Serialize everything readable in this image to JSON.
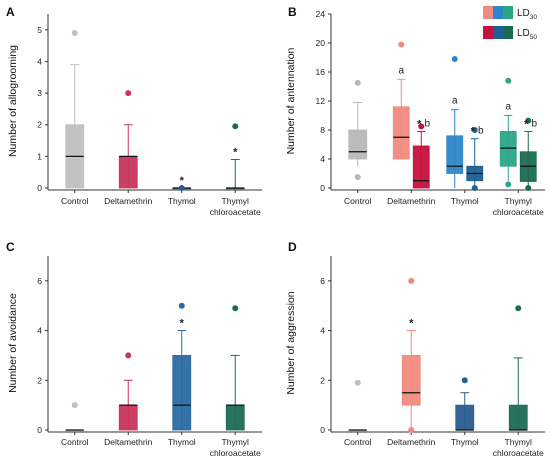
{
  "chart_data": [
    {
      "type": "box",
      "panel_label": "A",
      "ylabel": "Number of allogrooming",
      "ylim": [
        0,
        5.5
      ],
      "yticks": [
        0,
        1,
        2,
        3,
        4,
        5
      ],
      "categories": [
        "Control",
        "Deltamethrin",
        "Thymol",
        "Thymyl chloroacetate"
      ],
      "legend": [],
      "series": [
        {
          "category": "Control",
          "dose": "single",
          "color": "#c0c0c0",
          "box": {
            "whisker_low": 0,
            "q1": 0,
            "median": 1,
            "q3": 2,
            "whisker_high": 3.9
          },
          "outliers": [
            4.9
          ],
          "annotation": ""
        },
        {
          "category": "Deltamethrin",
          "dose": "single",
          "color": "#c7355a",
          "box": {
            "whisker_low": 0,
            "q1": 0,
            "median": 1,
            "q3": 1,
            "whisker_high": 2
          },
          "outliers": [
            3
          ],
          "annotation": ""
        },
        {
          "category": "Thymol",
          "dose": "single",
          "color": "#2a5d8f",
          "box": {
            "whisker_low": 0,
            "q1": 0,
            "median": 0,
            "q3": 0,
            "whisker_high": 0
          },
          "outliers": [
            0
          ],
          "annotation": "*"
        },
        {
          "category": "Thymyl chloroacetate",
          "dose": "single",
          "color": "#1e6b55",
          "box": {
            "whisker_low": 0,
            "q1": 0,
            "median": 0,
            "q3": 0,
            "whisker_high": 0.9
          },
          "outliers": [
            1.95
          ],
          "annotation": "*"
        }
      ]
    },
    {
      "type": "box",
      "panel_label": "B",
      "ylabel": "Number of antennation",
      "ylim": [
        0,
        24
      ],
      "yticks": [
        0,
        4,
        8,
        12,
        16,
        20,
        24
      ],
      "categories": [
        "Control",
        "Deltamethrin",
        "Thymol",
        "Thymyl chloroacetate"
      ],
      "legend": [
        {
          "base": "LD",
          "sub": "30",
          "colors": [
            "#f08a7e",
            "#2e86c8",
            "#2aa587"
          ]
        },
        {
          "base": "LD",
          "sub": "50",
          "colors": [
            "#c8103e",
            "#1e5f96",
            "#1a6a52"
          ]
        }
      ],
      "series": [
        {
          "category": "Control",
          "dose": "single",
          "color": "#b8b8b8",
          "box": {
            "whisker_low": 3,
            "q1": 4,
            "median": 5,
            "q3": 8,
            "whisker_high": 11.8
          },
          "outliers": [
            1.5,
            14.5
          ],
          "annotation": ""
        },
        {
          "category": "Deltamethrin",
          "dose": "LD30",
          "color": "#f08a7e",
          "box": {
            "whisker_low": 4,
            "q1": 4,
            "median": 7,
            "q3": 11.2,
            "whisker_high": 15
          },
          "outliers": [
            19.8
          ],
          "annotation": "a"
        },
        {
          "category": "Deltamethrin",
          "dose": "LD50",
          "color": "#c8103e",
          "box": {
            "whisker_low": 0,
            "q1": 0,
            "median": 1,
            "q3": 5.8,
            "whisker_high": 7.8
          },
          "outliers": [
            8.5
          ],
          "annotation": "*b"
        },
        {
          "category": "Thymol",
          "dose": "LD30",
          "color": "#2e86c8",
          "box": {
            "whisker_low": 0,
            "q1": 2,
            "median": 3,
            "q3": 7.2,
            "whisker_high": 10.8
          },
          "outliers": [
            17.8
          ],
          "annotation": "a"
        },
        {
          "category": "Thymol",
          "dose": "LD50",
          "color": "#1e5f96",
          "box": {
            "whisker_low": 0,
            "q1": 1,
            "median": 2,
            "q3": 3,
            "whisker_high": 6.8
          },
          "outliers": [
            0,
            8
          ],
          "annotation": "*b"
        },
        {
          "category": "Thymyl chloroacetate",
          "dose": "LD30",
          "color": "#2aa587",
          "box": {
            "whisker_low": 1,
            "q1": 3,
            "median": 5.5,
            "q3": 7.8,
            "whisker_high": 10
          },
          "outliers": [
            0.5,
            14.8
          ],
          "annotation": "a"
        },
        {
          "category": "Thymyl chloroacetate",
          "dose": "LD50",
          "color": "#1a6a52",
          "box": {
            "whisker_low": 0,
            "q1": 0.9,
            "median": 3,
            "q3": 5,
            "whisker_high": 7.8
          },
          "outliers": [
            0,
            9.3
          ],
          "annotation": "*b"
        }
      ]
    },
    {
      "type": "box",
      "panel_label": "C",
      "ylabel": "Number of avoidance",
      "ylim": [
        0,
        7
      ],
      "yticks": [
        0,
        2,
        4,
        6
      ],
      "categories": [
        "Control",
        "Deltamethrin",
        "Thymol",
        "Thymyl chloroacetate"
      ],
      "legend": [],
      "series": [
        {
          "category": "Control",
          "dose": "single",
          "color": "#c0c0c0",
          "box": {
            "whisker_low": 0,
            "q1": 0,
            "median": 0,
            "q3": 0,
            "whisker_high": 0
          },
          "outliers": [
            1
          ],
          "annotation": ""
        },
        {
          "category": "Deltamethrin",
          "dose": "single",
          "color": "#c7355a",
          "box": {
            "whisker_low": 0,
            "q1": 0,
            "median": 1,
            "q3": 1,
            "whisker_high": 2
          },
          "outliers": [
            3
          ],
          "annotation": ""
        },
        {
          "category": "Thymol",
          "dose": "single",
          "color": "#2a6aa0",
          "box": {
            "whisker_low": 0,
            "q1": 0,
            "median": 1,
            "q3": 3,
            "whisker_high": 4
          },
          "outliers": [
            5
          ],
          "annotation": "*"
        },
        {
          "category": "Thymyl chloroacetate",
          "dose": "single",
          "color": "#1e6b55",
          "box": {
            "whisker_low": 0,
            "q1": 0,
            "median": 1,
            "q3": 1,
            "whisker_high": 3
          },
          "outliers": [
            4.9
          ],
          "annotation": ""
        }
      ]
    },
    {
      "type": "box",
      "panel_label": "D",
      "ylabel": "Number of aggression",
      "ylim": [
        0,
        7
      ],
      "yticks": [
        0,
        2,
        4,
        6
      ],
      "categories": [
        "Control",
        "Deltamethrin",
        "Thymol",
        "Thymyl chloroacetate"
      ],
      "legend": [],
      "series": [
        {
          "category": "Control",
          "dose": "single",
          "color": "#c0c0c0",
          "box": {
            "whisker_low": 0,
            "q1": 0,
            "median": 0,
            "q3": 0,
            "whisker_high": 0
          },
          "outliers": [
            1.9
          ],
          "annotation": ""
        },
        {
          "category": "Deltamethrin",
          "dose": "single",
          "color": "#f08a7e",
          "box": {
            "whisker_low": 0,
            "q1": 1,
            "median": 1.5,
            "q3": 3,
            "whisker_high": 4
          },
          "outliers": [
            6,
            0
          ],
          "annotation": "*"
        },
        {
          "category": "Thymol",
          "dose": "single",
          "color": "#2a5d8f",
          "box": {
            "whisker_low": 0,
            "q1": 0,
            "median": 0,
            "q3": 1,
            "whisker_high": 1.5
          },
          "outliers": [
            2
          ],
          "annotation": ""
        },
        {
          "category": "Thymyl chloroacetate",
          "dose": "single",
          "color": "#1e6b55",
          "box": {
            "whisker_low": 0,
            "q1": 0,
            "median": 0,
            "q3": 1,
            "whisker_high": 2.9
          },
          "outliers": [
            4.9
          ],
          "annotation": ""
        }
      ]
    }
  ]
}
